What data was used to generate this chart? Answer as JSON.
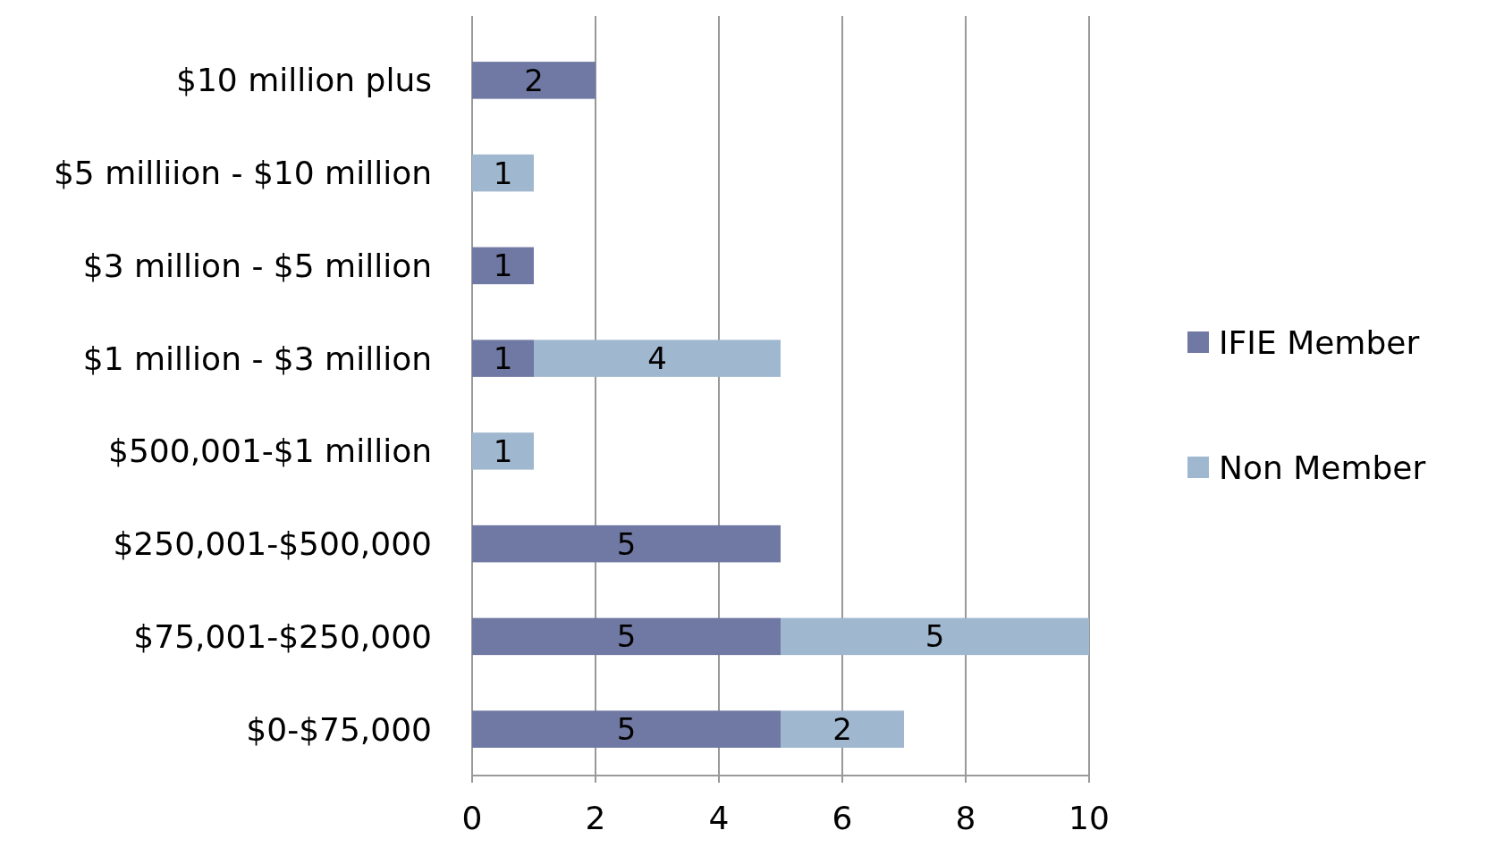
{
  "chart_data": {
    "type": "bar",
    "orientation": "horizontal",
    "stacked": true,
    "categories": [
      "$10 million plus",
      "$5 milliion - $10 million",
      "$3 million - $5 million",
      "$1 million - $3 million",
      "$500,001-$1 million",
      "$250,001-$500,000",
      "$75,001-$250,000",
      "$0-$75,000"
    ],
    "series": [
      {
        "name": "IFIE Member",
        "color": "#7079a3",
        "values": [
          2,
          null,
          1,
          1,
          null,
          5,
          5,
          5
        ]
      },
      {
        "name": "Non Member",
        "color": "#a0b8cf",
        "values": [
          null,
          1,
          null,
          4,
          1,
          null,
          5,
          2
        ]
      }
    ],
    "xlim": [
      0,
      10
    ],
    "xticks": [
      0,
      2,
      4,
      6,
      8,
      10
    ],
    "grid": "x",
    "legend": "right",
    "data_labels": true
  }
}
